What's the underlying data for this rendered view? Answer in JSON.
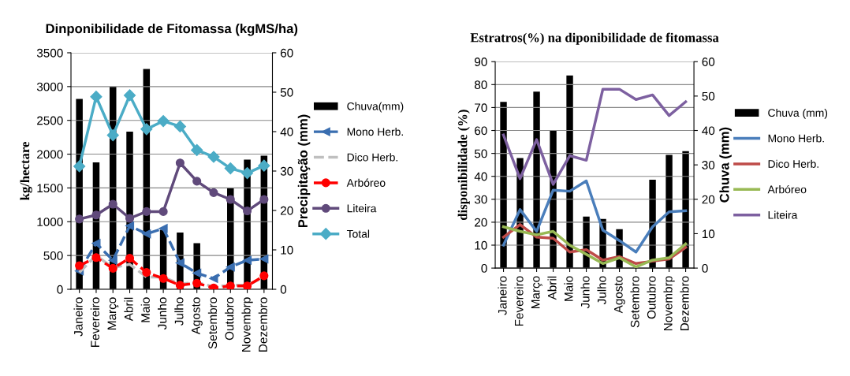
{
  "chart_data": [
    {
      "type": "line",
      "title": "Dinponibilidade de Fitomassa (kgMS/ha)",
      "ylabel": "kg/hectare",
      "y2label": "Precipitação (mm)",
      "categories": [
        "Janeiro",
        "Fevereiro",
        "Março",
        "Abril",
        "Maio",
        "Junho",
        "Julho",
        "Agosto",
        "Setembro",
        "Outubro",
        "Novembrp",
        "Dezembro"
      ],
      "ylim": [
        0,
        3500
      ],
      "yticks": [
        0,
        500,
        1000,
        1500,
        2000,
        2500,
        3000,
        3500
      ],
      "y2lim": [
        0,
        60
      ],
      "y2ticks": [
        0,
        10,
        20,
        30,
        40,
        50,
        60
      ],
      "grid": "y",
      "legend": "right",
      "series": [
        {
          "name": "Chuva(mm)",
          "type": "bar",
          "axis": "y2",
          "color": "#000000",
          "values": [
            48.3,
            32.2,
            51.4,
            40,
            55.9,
            15.1,
            14.4,
            11.7,
            0,
            25.7,
            32.9,
            33.9
          ]
        },
        {
          "name": "Mono Herb.",
          "color": "#3a6eb0",
          "marker": "triangle",
          "line_style": "dashed",
          "values": [
            270,
            680,
            430,
            940,
            820,
            900,
            390,
            240,
            160,
            330,
            430,
            450
          ]
        },
        {
          "name": "Dico Herb.",
          "color": "#bfbfbf",
          "marker": "none",
          "line_style": "dashed",
          "values": [
            250,
            500,
            320,
            370,
            180,
            180,
            80,
            100,
            40,
            60,
            60,
            180
          ]
        },
        {
          "name": "Arbóreo",
          "color": "#ff0000",
          "marker": "circle",
          "line_style": "dashed",
          "values": [
            350,
            470,
            310,
            460,
            250,
            160,
            60,
            90,
            20,
            50,
            50,
            200
          ]
        },
        {
          "name": "Liteira",
          "color": "#604a7b",
          "marker": "circle",
          "line_style": "solid",
          "values": [
            1040,
            1100,
            1260,
            1050,
            1150,
            1150,
            1870,
            1600,
            1430,
            1330,
            1160,
            1330
          ]
        },
        {
          "name": "Total",
          "color": "#4bacc6",
          "marker": "diamond",
          "line_style": "solid",
          "values": [
            1820,
            2850,
            2280,
            2870,
            2370,
            2490,
            2410,
            2060,
            1960,
            1790,
            1720,
            1830
          ]
        }
      ]
    },
    {
      "type": "line",
      "title": "Estratros(%) na diponibilidade de fitomassa",
      "ylabel": "disponibilidade (%)",
      "y2label": "Chuva (mm)",
      "categories": [
        "Janeiro",
        "Fevereiro",
        "Março",
        "Abril",
        "Maio",
        "Junho",
        "Julho",
        "Agosto",
        "Setembro",
        "Outubro",
        "Novembrp",
        "Dezembro"
      ],
      "ylim": [
        0,
        90
      ],
      "yticks": [
        0,
        10,
        20,
        30,
        40,
        50,
        60,
        70,
        80,
        90
      ],
      "y2lim": [
        0,
        60
      ],
      "y2ticks": [
        0,
        10,
        20,
        30,
        40,
        50,
        60
      ],
      "grid": "y",
      "legend": "right",
      "series": [
        {
          "name": "Chuva (mm)",
          "type": "bar",
          "axis": "y2",
          "color": "#000000",
          "values": [
            48.3,
            32,
            51.3,
            40,
            56,
            15,
            14.3,
            11.3,
            0,
            25.7,
            32.9,
            34
          ]
        },
        {
          "name": "Mono Herb.",
          "color": "#4a7ebb",
          "marker": "none",
          "line_style": "solid",
          "values": [
            10,
            25.5,
            16,
            34,
            33.5,
            38,
            16.5,
            12,
            7,
            18,
            24.5,
            25
          ]
        },
        {
          "name": "Dico Herb.",
          "color": "#be4b48",
          "marker": "none",
          "line_style": "solid",
          "values": [
            13.5,
            19,
            13.5,
            13,
            7,
            8,
            3.5,
            5,
            2,
            3,
            4,
            9
          ]
        },
        {
          "name": "Arbóreo",
          "color": "#98b954",
          "marker": "none",
          "line_style": "solid",
          "values": [
            18,
            16,
            14.5,
            16,
            10,
            6,
            2,
            4.5,
            0.5,
            3.5,
            4.5,
            10.5
          ]
        },
        {
          "name": "Liteira",
          "color": "#7d60a0",
          "marker": "none",
          "line_style": "solid",
          "values": [
            58,
            39,
            56,
            36.5,
            49,
            47,
            78,
            78,
            73.5,
            75.5,
            66.5,
            72.5
          ]
        }
      ]
    }
  ]
}
